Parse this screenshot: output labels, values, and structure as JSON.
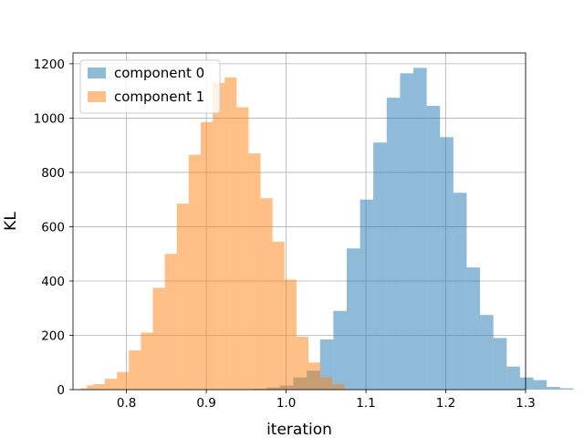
{
  "chart_data": {
    "type": "histogram",
    "title": "",
    "xlabel": "iteration",
    "ylabel": "KL",
    "xlim": [
      0.733,
      1.3
    ],
    "ylim": [
      0,
      1240
    ],
    "xticks": [
      0.8,
      0.9,
      1.0,
      1.1,
      1.2,
      1.3
    ],
    "xtick_labels": [
      "0.8",
      "0.9",
      "1.0",
      "1.1",
      "1.2",
      "1.3"
    ],
    "yticks": [
      0,
      200,
      400,
      600,
      800,
      1000,
      1200
    ],
    "ytick_labels": [
      "0",
      "200",
      "400",
      "600",
      "800",
      "1000",
      "1200"
    ],
    "grid": true,
    "legend_position": "top-left",
    "alpha": 0.5,
    "series": [
      {
        "name": "component 0",
        "color": "#1f77b4",
        "bin_start": 0.959,
        "bin_width": 0.0167,
        "counts": [
          3,
          8,
          15,
          45,
          70,
          185,
          290,
          520,
          700,
          910,
          1075,
          1165,
          1185,
          1045,
          930,
          725,
          450,
          275,
          190,
          85,
          45,
          35,
          10,
          5
        ]
      },
      {
        "name": "component 1",
        "color": "#ff7f0e",
        "bin_start": 0.743,
        "bin_width": 0.0075,
        "counts": [
          5,
          15,
          20,
          20,
          40,
          40,
          65,
          65,
          145,
          145,
          210,
          210,
          375,
          375,
          500,
          500,
          685,
          685,
          865,
          865,
          985,
          985,
          1130,
          1130,
          1150,
          1150,
          1040,
          1040,
          870,
          870,
          705,
          705,
          545,
          545,
          405,
          405,
          195,
          195,
          100,
          100,
          45,
          45,
          20,
          20
        ]
      }
    ]
  }
}
